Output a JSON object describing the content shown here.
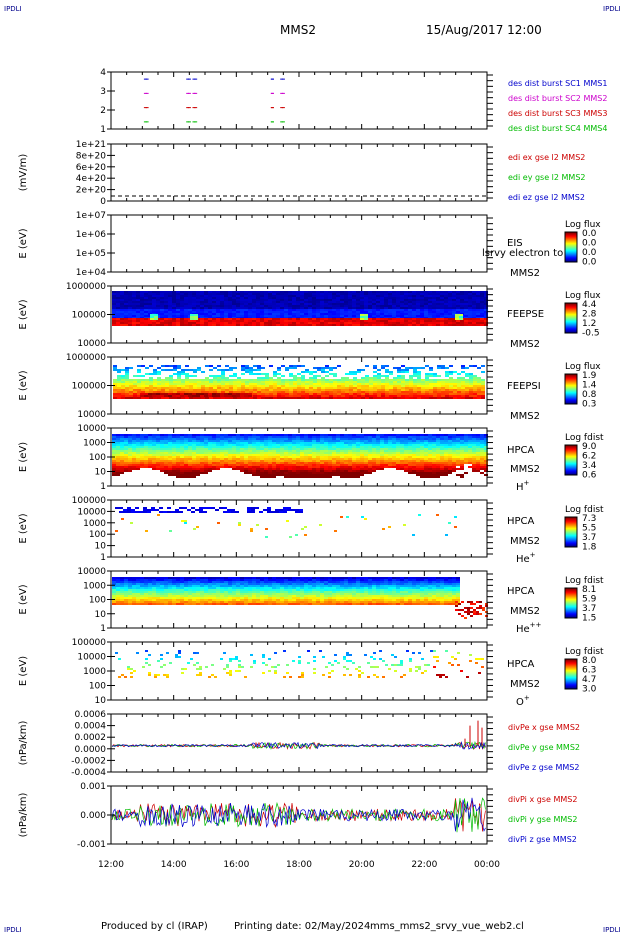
{
  "corner_label": "IPDLI",
  "header": {
    "spacecraft": "MMS2",
    "datetime": "15/Aug/2017 12:00"
  },
  "footer": {
    "produced": "Produced by cl (IRAP)",
    "printing": "Printing date: 02/May/2024",
    "script": "mms_mms2_srvy_vue_web2.cl"
  },
  "chart_data": [
    {
      "id": "burst",
      "type": "scatter",
      "yticks": [
        "1",
        "2",
        "3",
        "4"
      ],
      "ylim": [
        0.5,
        4.5
      ],
      "legend": [
        {
          "text": "des dist burst SC1 MMS1",
          "color": "#0000cc"
        },
        {
          "text": "des dist burst SC2 MMS2",
          "color": "#cc00cc"
        },
        {
          "text": "des dist burst SC3 MMS3",
          "color": "#cc0000"
        },
        {
          "text": "des dist burst SC4 MMS4",
          "color": "#00bb00"
        }
      ],
      "segments_hours": [
        [
          13.05,
          13.2
        ],
        [
          14.4,
          14.55
        ],
        [
          14.6,
          14.75
        ],
        [
          17.1,
          17.2
        ],
        [
          17.4,
          17.55
        ]
      ]
    },
    {
      "id": "edi",
      "type": "line",
      "ylabel": "(mV/m)",
      "yticks": [
        "0",
        "2e+20",
        "4e+20",
        "6e+20",
        "8e+20",
        "1e+21"
      ],
      "ylim": [
        0,
        1e+21
      ],
      "legend": [
        {
          "text": "edi ex gse l2 MMS2",
          "color": "#cc0000"
        },
        {
          "text": "edi ey gse l2 MMS2",
          "color": "#00bb00"
        },
        {
          "text": "edi ez gse l2 MMS2",
          "color": "#0000cc"
        }
      ]
    },
    {
      "id": "eis",
      "type": "heatmap",
      "ylabel": "E (eV)",
      "yticks": [
        "1e+04",
        "1e+05",
        "1e+06",
        "1e+07"
      ],
      "label": "EIS",
      "sublabel": "MMS2",
      "overlay": "lsrvy electron to",
      "colorbar_title": "Log flux",
      "colorbar_ticks": [
        "0.0",
        "0.0",
        "0.0",
        "0.0"
      ]
    },
    {
      "id": "feepse",
      "type": "heatmap",
      "ylabel": "E (eV)",
      "yticks": [
        "10000",
        "100000",
        "1000000"
      ],
      "label": "FEEPSE",
      "sublabel": "MMS2",
      "colorbar_title": "Log flux",
      "colorbar_ticks": [
        "4.4",
        "2.8",
        "1.2",
        "-0.5"
      ]
    },
    {
      "id": "feepsi",
      "type": "heatmap",
      "ylabel": "E (eV)",
      "yticks": [
        "10000",
        "100000",
        "1000000"
      ],
      "label": "FEEPSI",
      "sublabel": "MMS2",
      "colorbar_title": "Log flux",
      "colorbar_ticks": [
        "1.9",
        "1.4",
        "0.8",
        "0.3"
      ]
    },
    {
      "id": "hpca_h",
      "type": "heatmap",
      "ylabel": "E (eV)",
      "yticks": [
        "1",
        "10",
        "100",
        "1000",
        "10000"
      ],
      "label": "HPCA",
      "sublabel": "MMS2",
      "species": "H",
      "species_sup": "+",
      "colorbar_title": "Log fdist",
      "colorbar_ticks": [
        "9.0",
        "6.2",
        "3.4",
        "0.6"
      ]
    },
    {
      "id": "hpca_he1",
      "type": "heatmap",
      "ylabel": "E (eV)",
      "yticks": [
        "1",
        "10",
        "100",
        "1000",
        "10000",
        "100000"
      ],
      "label": "HPCA",
      "sublabel": "MMS2",
      "species": "He",
      "species_sup": "+",
      "colorbar_title": "Log fdist",
      "colorbar_ticks": [
        "7.3",
        "5.5",
        "3.7",
        "1.8"
      ]
    },
    {
      "id": "hpca_he2",
      "type": "heatmap",
      "ylabel": "E (eV)",
      "yticks": [
        "1",
        "10",
        "100",
        "1000",
        "10000"
      ],
      "label": "HPCA",
      "sublabel": "MMS2",
      "species": "He",
      "species_sup": "++",
      "colorbar_title": "Log fdist",
      "colorbar_ticks": [
        "8.1",
        "5.9",
        "3.7",
        "1.5"
      ]
    },
    {
      "id": "hpca_o",
      "type": "heatmap",
      "ylabel": "E (eV)",
      "yticks": [
        "10",
        "100",
        "1000",
        "10000",
        "100000"
      ],
      "label": "HPCA",
      "sublabel": "MMS2",
      "species": "O",
      "species_sup": "+",
      "colorbar_title": "Log fdist",
      "colorbar_ticks": [
        "8.0",
        "6.3",
        "4.7",
        "3.0"
      ]
    },
    {
      "id": "divpe",
      "type": "line",
      "ylabel": "(nPa/km)",
      "yticks": [
        "-0.0004",
        "-0.0002",
        "0.0000",
        "0.0002",
        "0.0004",
        "0.0006"
      ],
      "ylim": [
        -0.0005,
        0.0006
      ],
      "legend": [
        {
          "text": "divPe x gse MMS2",
          "color": "#cc0000"
        },
        {
          "text": "divPe y gse MMS2",
          "color": "#00bb00"
        },
        {
          "text": "divPe z gse MMS2",
          "color": "#0000cc"
        }
      ]
    },
    {
      "id": "divpi",
      "type": "line",
      "ylabel": "(nPa/km)",
      "yticks": [
        "-0.001",
        "0.000",
        "0.001"
      ],
      "ylim": [
        -0.0016,
        0.0016
      ],
      "legend": [
        {
          "text": "divPi x gse MMS2",
          "color": "#cc0000"
        },
        {
          "text": "divPi y gse MMS2",
          "color": "#00bb00"
        },
        {
          "text": "divPi z gse MMS2",
          "color": "#0000cc"
        }
      ]
    }
  ],
  "xaxis": {
    "ticks": [
      "12:00",
      "14:00",
      "16:00",
      "18:00",
      "20:00",
      "22:00",
      "00:00"
    ],
    "range_hours": [
      12,
      24
    ]
  }
}
